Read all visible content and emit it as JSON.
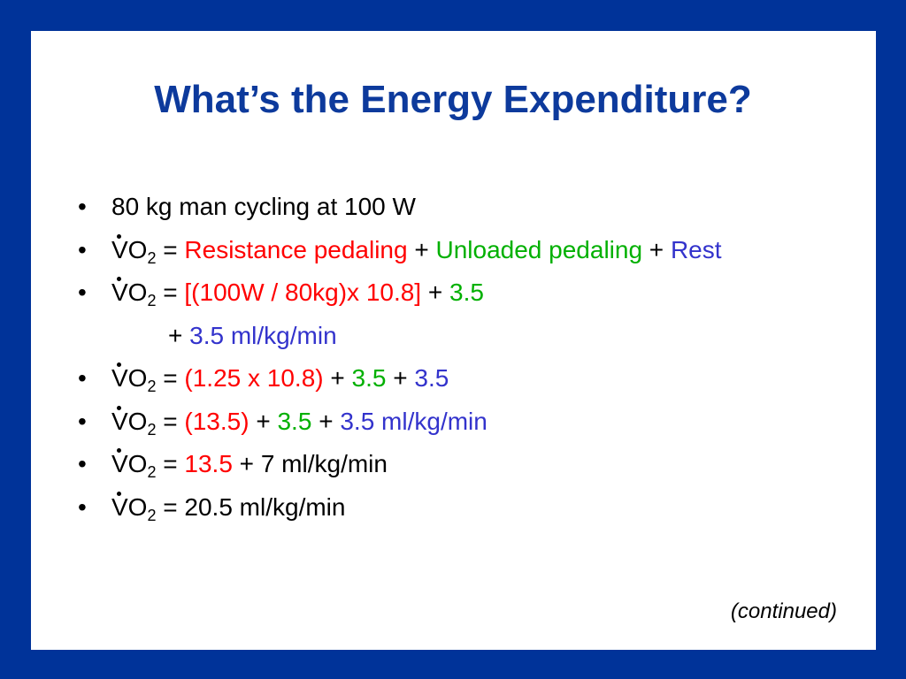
{
  "title": "What’s the Energy Expenditure?",
  "lines": [
    {
      "bullet": true,
      "runs": [
        {
          "text": "80 kg man cycling at 100 W"
        }
      ]
    },
    {
      "bullet": true,
      "runs": [
        {
          "text": "VO"
        },
        {
          "text": "2",
          "sub": true
        },
        {
          "text": " = "
        },
        {
          "text": "Resistance pedaling",
          "color": "#ff0000"
        },
        {
          "text": " + "
        },
        {
          "text": "Unloaded pedaling",
          "color": "#00b000"
        },
        {
          "text": " + "
        },
        {
          "text": "Rest",
          "color": "#3333cc"
        }
      ]
    },
    {
      "bullet": true,
      "runs": [
        {
          "text": "VO"
        },
        {
          "text": "2",
          "sub": true
        },
        {
          "text": " = "
        },
        {
          "text": "[(100W / 80kg)x 10.8]",
          "color": "#ff0000"
        },
        {
          "text": " + "
        },
        {
          "text": "3.5",
          "color": "#00b000"
        }
      ]
    },
    {
      "bullet": false,
      "runs": [
        {
          "text": "+ "
        },
        {
          "text": "3.5 ml/kg/min",
          "color": "#3333cc"
        }
      ]
    },
    {
      "bullet": true,
      "runs": [
        {
          "text": "VO"
        },
        {
          "text": "2",
          "sub": true
        },
        {
          "text": " = "
        },
        {
          "text": "(1.25 x 10.8)",
          "color": "#ff0000"
        },
        {
          "text": " + "
        },
        {
          "text": "3.5",
          "color": "#00b000"
        },
        {
          "text": " + "
        },
        {
          "text": "3.5",
          "color": "#3333cc"
        }
      ]
    },
    {
      "bullet": true,
      "runs": [
        {
          "text": "VO"
        },
        {
          "text": "2",
          "sub": true
        },
        {
          "text": " = "
        },
        {
          "text": "(13.5)",
          "color": "#ff0000"
        },
        {
          "text": " + "
        },
        {
          "text": "3.5",
          "color": "#00b000"
        },
        {
          "text": " + "
        },
        {
          "text": "3.5 ml/kg/min",
          "color": "#3333cc"
        }
      ]
    },
    {
      "bullet": true,
      "runs": [
        {
          "text": "VO"
        },
        {
          "text": "2",
          "sub": true
        },
        {
          "text": " = "
        },
        {
          "text": "13.5",
          "color": "#ff0000"
        },
        {
          "text": " + 7 ml/kg/min"
        }
      ]
    },
    {
      "bullet": true,
      "runs": [
        {
          "text": "VO"
        },
        {
          "text": "2",
          "sub": true
        },
        {
          "text": " = 20.5 ml/kg/min"
        }
      ]
    }
  ],
  "footer": "(continued)"
}
